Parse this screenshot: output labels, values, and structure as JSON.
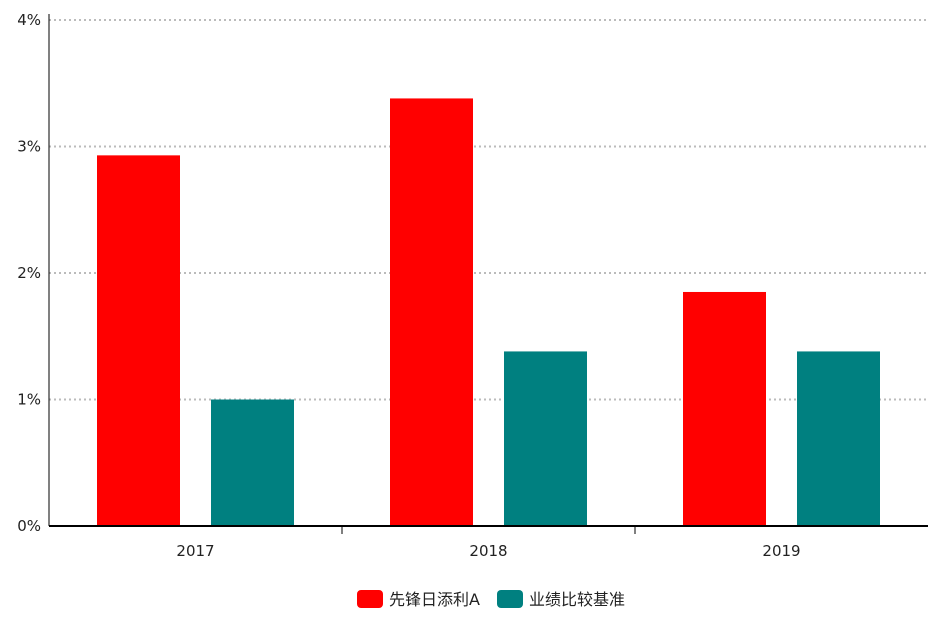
{
  "chart_data": {
    "type": "bar",
    "categories": [
      "2017",
      "2018",
      "2019"
    ],
    "series": [
      {
        "name": "先锋日添利A",
        "values": [
          2.93,
          3.38,
          1.85
        ],
        "color": "#ff0000"
      },
      {
        "name": "业绩比较基准",
        "values": [
          1.0,
          1.38,
          1.38
        ],
        "color": "#008080"
      }
    ],
    "y_ticks": [
      "0%",
      "1%",
      "2%",
      "3%",
      "4%"
    ],
    "ylim": [
      0,
      4
    ],
    "y_unit": "%",
    "grid": "horizontal dotted",
    "legend_position": "bottom-center",
    "axis_color": "#000000",
    "grid_color": "#bbbbbb"
  }
}
